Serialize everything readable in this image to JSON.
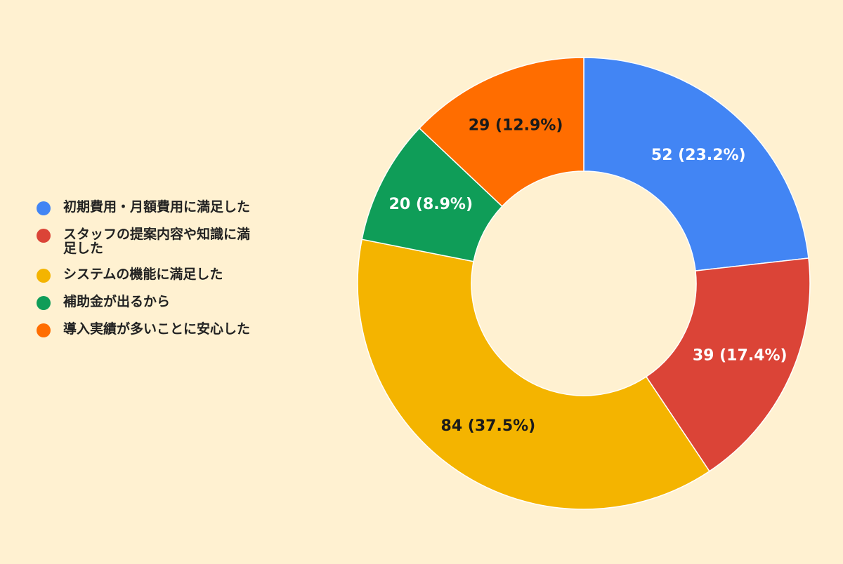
{
  "chart_data": {
    "type": "pie",
    "donut": true,
    "legend_position": "left",
    "categories": [
      "初期費用・月額費用に満足した",
      "スタッフの提案内容や知識に満足した",
      "システムの機能に満足した",
      "補助金が出るから",
      "導入実績が多いことに安心した"
    ],
    "values": [
      52,
      39,
      84,
      20,
      29
    ],
    "data_labels": [
      "52 (23.2%)",
      "39 (17.4%)",
      "84 (37.5%)",
      "20 (8.9%)",
      "29 (12.9%)"
    ],
    "colors": [
      "#4285f4",
      "#db4437",
      "#f4b400",
      "#0f9d58",
      "#ff6d00"
    ],
    "label_colors": [
      "#ffffff",
      "#ffffff",
      "#1a1a1a",
      "#ffffff",
      "#1a1a1a"
    ],
    "legend_display": [
      "初期費用・月額費用に満足した",
      "スタッフの提案内容や知識に満\n足した",
      "システムの機能に満足した",
      "補助金が出るから",
      "導入実績が多いことに安心した"
    ]
  }
}
